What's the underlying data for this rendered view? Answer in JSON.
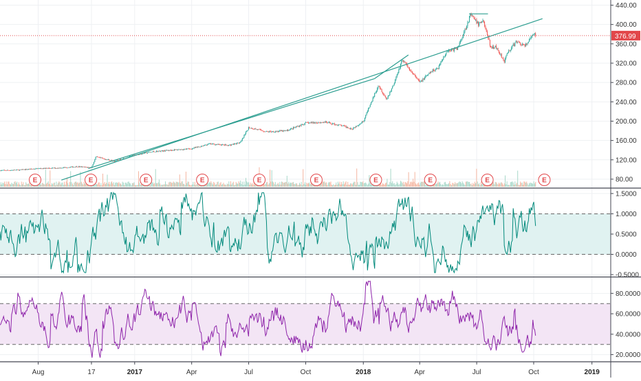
{
  "chart_data": [
    {
      "type": "line",
      "panel": "price",
      "ylim": [
        70,
        445
      ],
      "yticks": [
        "80.00",
        "120.00",
        "160.00",
        "200.00",
        "240.00",
        "280.00",
        "320.00",
        "360.00",
        "400.00",
        "440.00"
      ],
      "ytick_values": [
        80,
        120,
        160,
        200,
        240,
        280,
        320,
        360,
        400,
        440
      ],
      "last_price": {
        "label": "376.99",
        "value": 376.99,
        "color": "#e2474a"
      },
      "earnings_marker": "E",
      "earnings_dates": [
        "2016-07-27",
        "2016-10-24",
        "2017-01-20",
        "2017-04-20",
        "2017-07-20",
        "2017-10-19",
        "2018-01-22",
        "2018-04-19",
        "2018-07-19",
        "2018-10-18"
      ],
      "x": [
        "2016-06-01",
        "2016-07-01",
        "2016-08-01",
        "2016-09-01",
        "2016-10-01",
        "2016-10-25",
        "2016-11-01",
        "2016-12-01",
        "2017-01-02",
        "2017-02-01",
        "2017-03-01",
        "2017-04-03",
        "2017-05-01",
        "2017-06-01",
        "2017-06-20",
        "2017-07-03",
        "2017-08-01",
        "2017-09-01",
        "2017-10-02",
        "2017-11-01",
        "2017-12-01",
        "2017-12-15",
        "2018-01-02",
        "2018-01-15",
        "2018-01-26",
        "2018-02-08",
        "2018-02-20",
        "2018-03-05",
        "2018-03-15",
        "2018-04-02",
        "2018-04-20",
        "2018-05-01",
        "2018-05-15",
        "2018-06-01",
        "2018-06-15",
        "2018-06-22",
        "2018-07-05",
        "2018-07-12",
        "2018-07-25",
        "2018-08-01",
        "2018-08-15",
        "2018-08-22",
        "2018-09-04",
        "2018-09-17",
        "2018-10-01",
        "2018-10-05"
      ],
      "series": [
        {
          "values": [
            98,
            99,
            102,
            103,
            106,
            104,
            126,
            117,
            130,
            137,
            140,
            143,
            153,
            150,
            156,
            187,
            178,
            180,
            196,
            198,
            190,
            184,
            200,
            240,
            275,
            245,
            278,
            328,
            310,
            280,
            302,
            310,
            345,
            350,
            395,
            420,
            400,
            410,
            350,
            355,
            325,
            345,
            365,
            355,
            380,
            377
          ]
        }
      ],
      "trendlines": [
        {
          "start": [
            "2016-09-07",
            78
          ],
          "end": [
            "2018-10-15",
            412
          ]
        },
        {
          "start": [
            "2016-10-20",
            102
          ],
          "end": [
            "2018-01-20",
            288
          ]
        },
        {
          "start": [
            "2018-01-20",
            288
          ],
          "end": [
            "2018-03-15",
            337
          ]
        },
        {
          "start": [
            "2018-06-20",
            422
          ],
          "end": [
            "2018-07-20",
            422
          ]
        }
      ],
      "colors": {
        "up": "#26a69a",
        "down": "#ef5350",
        "trendline": "#2a9d8f"
      }
    },
    {
      "type": "line",
      "panel": "oscillator-1",
      "ylim": [
        -0.55,
        1.6
      ],
      "yticks": [
        "1.5000",
        "1.0000",
        "0.5000",
        "0.0000",
        "-0.5000"
      ],
      "ytick_values": [
        1.5,
        1.0,
        0.5,
        0.0,
        -0.5
      ],
      "band": [
        0,
        1
      ],
      "colors": {
        "line": "#00897b",
        "band": "#e0f2f1"
      }
    },
    {
      "type": "line",
      "panel": "oscillator-2",
      "ylim": [
        13,
        95
      ],
      "yticks": [
        "80.0000",
        "60.0000",
        "40.0000",
        "20.0000"
      ],
      "ytick_values": [
        80,
        60,
        40,
        20
      ],
      "band": [
        30,
        70
      ],
      "colors": {
        "line": "#8e24aa",
        "band": "#f3e5f5"
      }
    }
  ],
  "x_axis": {
    "labels": [
      {
        "text": "Aug",
        "date": "2016-08-01",
        "bold": false
      },
      {
        "text": "17",
        "date": "2016-10-25",
        "bold": false
      },
      {
        "text": "2017",
        "date": "2017-01-02",
        "bold": true
      },
      {
        "text": "Apr",
        "date": "2017-04-03",
        "bold": false
      },
      {
        "text": "Jul",
        "date": "2017-07-03",
        "bold": false
      },
      {
        "text": "Oct",
        "date": "2017-10-02",
        "bold": false
      },
      {
        "text": "2018",
        "date": "2018-01-02",
        "bold": true
      },
      {
        "text": "Apr",
        "date": "2018-04-02",
        "bold": false
      },
      {
        "text": "Jul",
        "date": "2018-07-02",
        "bold": false
      },
      {
        "text": "Oct",
        "date": "2018-10-01",
        "bold": false
      },
      {
        "text": "2019",
        "date": "2019-01-02",
        "bold": true
      }
    ],
    "start": "2016-06-01",
    "end": "2019-02-01"
  }
}
